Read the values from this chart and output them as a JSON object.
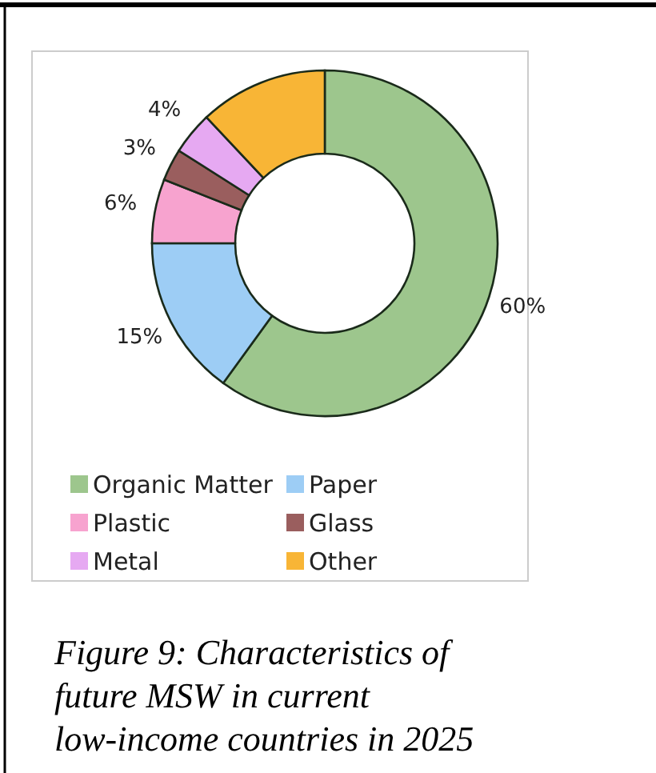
{
  "chart_data": {
    "type": "donut",
    "title": "Figure 9: Characteristics of future MSW in current low-income countries in 2025",
    "categories": [
      "Organic Matter",
      "Paper",
      "Plastic",
      "Glass",
      "Metal",
      "Other"
    ],
    "values": [
      60,
      15,
      6,
      3,
      4,
      12
    ],
    "value_labels": [
      "60%",
      "15%",
      "6%",
      "3%",
      "4%",
      null
    ],
    "colors": [
      "#9dc68d",
      "#9dcdf5",
      "#f7a3cf",
      "#9a5e5e",
      "#e6a9f2",
      "#f8b536"
    ],
    "legend": "bottom"
  }
}
